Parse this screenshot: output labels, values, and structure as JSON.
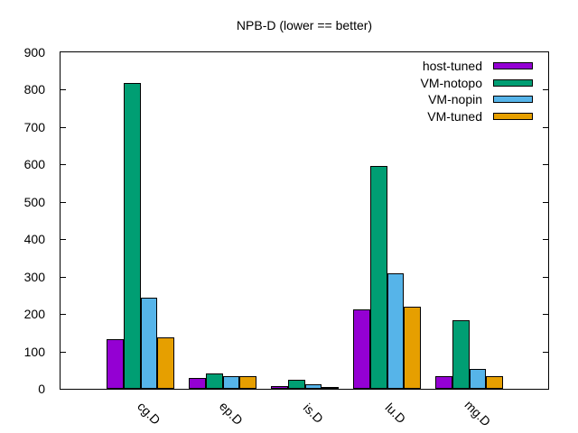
{
  "chart_data": {
    "type": "bar",
    "title": "NPB-D (lower == better)",
    "categories": [
      "cg.D",
      "ep.D",
      "is.D",
      "lu.D",
      "mg.D"
    ],
    "series": [
      {
        "name": "host-tuned",
        "color": "#9400D3",
        "values": [
          132,
          30,
          7,
          213,
          33
        ]
      },
      {
        "name": "VM-notopo",
        "color": "#009E73",
        "values": [
          817,
          41,
          24,
          597,
          184
        ]
      },
      {
        "name": "VM-nopin",
        "color": "#56B4E9",
        "values": [
          243,
          33,
          13,
          309,
          54
        ]
      },
      {
        "name": "VM-tuned",
        "color": "#E69F00",
        "values": [
          137,
          34,
          6,
          220,
          35
        ]
      }
    ],
    "ylim": [
      0,
      900
    ],
    "yticks": [
      0,
      100,
      200,
      300,
      400,
      500,
      600,
      700,
      800,
      900
    ],
    "grid": false,
    "legend_position": "top-right",
    "xtick_rotation": -45,
    "background_color": "#ffffff",
    "border_color": "#000000"
  }
}
